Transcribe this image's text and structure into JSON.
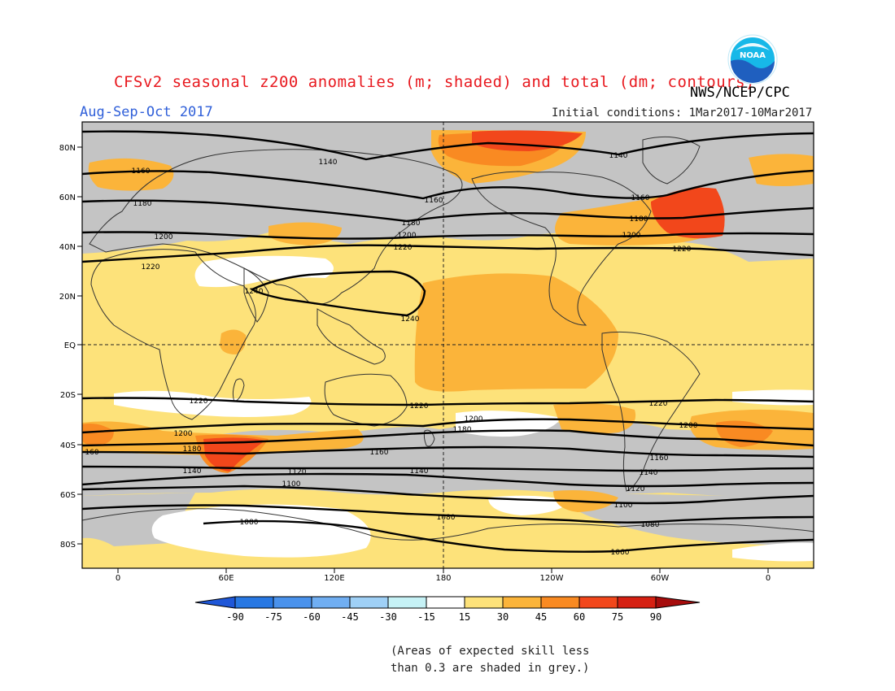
{
  "header": {
    "title": "CFSv2 seasonal z200 anomalies (m; shaded) and total (dm; contours)",
    "agency": "NWS/NCEP/CPC",
    "season": "Aug-Sep-Oct 2017",
    "initial_conditions": "Initial conditions: 1Mar2017-10Mar2017",
    "logo_text": "NOAA"
  },
  "map": {
    "lat_labels": [
      "80N",
      "60N",
      "40N",
      "20N",
      "EQ",
      "20S",
      "40S",
      "60S",
      "80S"
    ],
    "lon_labels": [
      "0",
      "60E",
      "120E",
      "180",
      "120W",
      "60W",
      "0"
    ],
    "contour_labels": [
      "1140",
      "1140",
      "1160",
      "1160",
      "1160",
      "1180",
      "1180",
      "1180",
      "1200",
      "1200",
      "1200",
      "1220",
      "1220",
      "1220",
      "1240",
      "1240",
      "1220",
      "1220",
      "1220",
      "1200",
      "1200",
      "1200",
      "1180",
      "1180",
      "1160",
      "1160",
      "160",
      "1140",
      "1140",
      "1140",
      "1120",
      "1120",
      "1100",
      "1100",
      "1080",
      "1080",
      "1080",
      "1060"
    ],
    "colors": {
      "grey_low_skill": "#c4c4c4",
      "white": "#ffffff",
      "pale_yellow": "#fde27a",
      "light_orange": "#fbb43a",
      "orange": "#f98a22",
      "red_orange": "#f2471b"
    }
  },
  "colorbar": {
    "ticks": [
      "-90",
      "-75",
      "-60",
      "-45",
      "-30",
      "-15",
      "15",
      "30",
      "45",
      "60",
      "75",
      "90"
    ],
    "colors": [
      "#1f57d8",
      "#2878e3",
      "#4a92ec",
      "#70aef2",
      "#9fd0f6",
      "#c6f2f6",
      "#ffffff",
      "#fde27a",
      "#fbb43a",
      "#f98a22",
      "#f2471b",
      "#d62012",
      "#a60c0c"
    ]
  },
  "footnote": {
    "line1": "(Areas of expected skill less",
    "line2": "than 0.3 are shaded in grey.)"
  }
}
